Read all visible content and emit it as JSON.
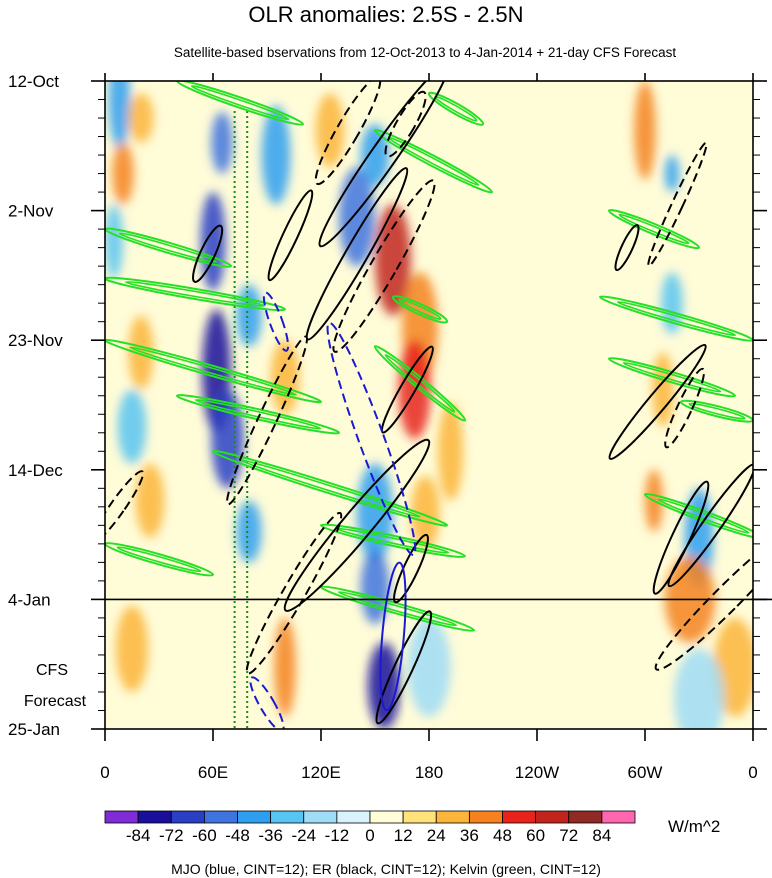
{
  "chart_data": {
    "type": "heatmap",
    "title": "OLR anomalies: 2.5S - 2.5N",
    "subtitle": "Satellite-based bservations from 12-Oct-2013 to 4-Jan-2014 + 21-day CFS Forecast",
    "x_tick_labels": [
      "0",
      "60E",
      "120E",
      "180",
      "120W",
      "60W",
      "0"
    ],
    "x_ticks_deg_east": [
      0,
      60,
      120,
      180,
      240,
      300,
      360
    ],
    "y_tick_labels": [
      "12-Oct",
      "2-Nov",
      "23-Nov",
      "14-Dec",
      "4-Jan",
      "25-Jan"
    ],
    "y_ticks_day": [
      0,
      21,
      42,
      63,
      84,
      105
    ],
    "ylim_day": [
      0,
      105
    ],
    "forecast_label": [
      "CFS",
      "Forecast"
    ],
    "forecast_start_day": 84,
    "colorbar": {
      "unit": "W/m^2",
      "levels": [
        -84,
        -72,
        -60,
        -48,
        -36,
        -24,
        -12,
        0,
        12,
        24,
        36,
        48,
        60,
        72,
        84
      ],
      "colors": [
        "#7f2bd6",
        "#1a0f9a",
        "#2a3fc4",
        "#3f74de",
        "#2e9ff0",
        "#58c4f2",
        "#9fdcf6",
        "#d8f3fb",
        "#fffcd8",
        "#ffe27a",
        "#fbb53a",
        "#f5821f",
        "#e8231c",
        "#c1241d",
        "#8f2a24",
        "#ff66b0"
      ]
    },
    "vertical_lines_deg_east": [
      72,
      79
    ],
    "footer": "MJO (blue, CINT=12); ER (black, CINT=12); Kelvin (green, CINT=12)",
    "field_blobs": [
      {
        "lon": 8,
        "day": 3,
        "rx": 6,
        "ry": 8,
        "v": -40
      },
      {
        "lon": 20,
        "day": 6,
        "rx": 7,
        "ry": 4,
        "v": 30
      },
      {
        "lon": 10,
        "day": 15,
        "rx": 6,
        "ry": 5,
        "v": 40
      },
      {
        "lon": 5,
        "day": 26,
        "rx": 5,
        "ry": 6,
        "v": -30
      },
      {
        "lon": 20,
        "day": 44,
        "rx": 7,
        "ry": 6,
        "v": 35
      },
      {
        "lon": 15,
        "day": 56,
        "rx": 8,
        "ry": 6,
        "v": -30
      },
      {
        "lon": 25,
        "day": 68,
        "rx": 8,
        "ry": 6,
        "v": 35
      },
      {
        "lon": 15,
        "day": 92,
        "rx": 9,
        "ry": 7,
        "v": 25
      },
      {
        "lon": 60,
        "day": 26,
        "rx": 7,
        "ry": 8,
        "v": -70
      },
      {
        "lon": 65,
        "day": 10,
        "rx": 6,
        "ry": 5,
        "v": -50
      },
      {
        "lon": 80,
        "day": 38,
        "rx": 7,
        "ry": 5,
        "v": -40
      },
      {
        "lon": 62,
        "day": 47,
        "rx": 8,
        "ry": 10,
        "v": -75
      },
      {
        "lon": 68,
        "day": 58,
        "rx": 9,
        "ry": 8,
        "v": -70
      },
      {
        "lon": 80,
        "day": 73,
        "rx": 7,
        "ry": 5,
        "v": -40
      },
      {
        "lon": 95,
        "day": 12,
        "rx": 8,
        "ry": 8,
        "v": -45
      },
      {
        "lon": 100,
        "day": 48,
        "rx": 8,
        "ry": 6,
        "v": 35
      },
      {
        "lon": 100,
        "day": 95,
        "rx": 6,
        "ry": 8,
        "v": 40
      },
      {
        "lon": 125,
        "day": 8,
        "rx": 8,
        "ry": 6,
        "v": 35
      },
      {
        "lon": 140,
        "day": 22,
        "rx": 10,
        "ry": 8,
        "v": -55
      },
      {
        "lon": 150,
        "day": 12,
        "rx": 8,
        "ry": 5,
        "v": -40
      },
      {
        "lon": 160,
        "day": 29,
        "rx": 10,
        "ry": 9,
        "v": 65
      },
      {
        "lon": 175,
        "day": 40,
        "rx": 10,
        "ry": 9,
        "v": 45
      },
      {
        "lon": 172,
        "day": 50,
        "rx": 9,
        "ry": 8,
        "v": 50
      },
      {
        "lon": 150,
        "day": 70,
        "rx": 10,
        "ry": 8,
        "v": -40
      },
      {
        "lon": 150,
        "day": 82,
        "rx": 8,
        "ry": 6,
        "v": -55
      },
      {
        "lon": 155,
        "day": 98,
        "rx": 9,
        "ry": 7,
        "v": -80
      },
      {
        "lon": 178,
        "day": 70,
        "rx": 8,
        "ry": 6,
        "v": 30
      },
      {
        "lon": 192,
        "day": 60,
        "rx": 7,
        "ry": 8,
        "v": 30
      },
      {
        "lon": 180,
        "day": 95,
        "rx": 12,
        "ry": 8,
        "v": -20
      },
      {
        "lon": 300,
        "day": 8,
        "rx": 6,
        "ry": 8,
        "v": 45
      },
      {
        "lon": 315,
        "day": 15,
        "rx": 4,
        "ry": 3,
        "v": -40
      },
      {
        "lon": 315,
        "day": 36,
        "rx": 6,
        "ry": 5,
        "v": -30
      },
      {
        "lon": 310,
        "day": 50,
        "rx": 6,
        "ry": 6,
        "v": 35
      },
      {
        "lon": 305,
        "day": 68,
        "rx": 5,
        "ry": 5,
        "v": 45
      },
      {
        "lon": 330,
        "day": 74,
        "rx": 8,
        "ry": 8,
        "v": -45
      },
      {
        "lon": 325,
        "day": 84,
        "rx": 14,
        "ry": 7,
        "v": 40
      },
      {
        "lon": 350,
        "day": 95,
        "rx": 12,
        "ry": 8,
        "v": 30
      },
      {
        "lon": 330,
        "day": 100,
        "rx": 14,
        "ry": 8,
        "v": -20
      }
    ],
    "mjo_contours": [
      {
        "lon": 95,
        "day": 39,
        "rx": 3.5,
        "ry": 5,
        "rot": -20,
        "dash": true
      },
      {
        "lon": 148,
        "day": 58,
        "rx": 7,
        "ry": 20,
        "rot": -20,
        "dash": true
      },
      {
        "lon": 160,
        "day": 90,
        "rx": 6,
        "ry": 12,
        "rot": 5,
        "dash": false
      },
      {
        "lon": 90,
        "day": 101,
        "rx": 4,
        "ry": 5,
        "rot": -30,
        "dash": true
      }
    ],
    "er_contours": [
      {
        "lon": 155,
        "day": 12,
        "rx": 7,
        "ry": 18,
        "rot": 35,
        "dash": false
      },
      {
        "lon": 135,
        "day": 8,
        "rx": 6,
        "ry": 10,
        "rot": 30,
        "dash": true
      },
      {
        "lon": 167,
        "day": 7,
        "rx": 5,
        "ry": 6,
        "rot": 30,
        "dash": true
      },
      {
        "lon": 140,
        "day": 28,
        "rx": 6,
        "ry": 16,
        "rot": 30,
        "dash": false
      },
      {
        "lon": 155,
        "day": 30,
        "rx": 7,
        "ry": 16,
        "rot": 30,
        "dash": true
      },
      {
        "lon": 103,
        "day": 25,
        "rx": 4,
        "ry": 8,
        "rot": 25,
        "dash": false
      },
      {
        "lon": 57,
        "day": 28,
        "rx": 4,
        "ry": 5,
        "rot": 25,
        "dash": false
      },
      {
        "lon": 168,
        "day": 50,
        "rx": 4,
        "ry": 8,
        "rot": 30,
        "dash": false
      },
      {
        "lon": 90,
        "day": 55,
        "rx": 5,
        "ry": 15,
        "rot": 25,
        "dash": true
      },
      {
        "lon": 140,
        "day": 72,
        "rx": 8,
        "ry": 18,
        "rot": 40,
        "dash": false
      },
      {
        "lon": 105,
        "day": 83,
        "rx": 6,
        "ry": 15,
        "rot": 30,
        "dash": true
      },
      {
        "lon": 170,
        "day": 79,
        "rx": 4,
        "ry": 6,
        "rot": 25,
        "dash": false
      },
      {
        "lon": 166,
        "day": 95,
        "rx": 5,
        "ry": 10,
        "rot": 25,
        "dash": false
      },
      {
        "lon": 7,
        "day": 69,
        "rx": 4,
        "ry": 7,
        "rot": 35,
        "dash": true
      },
      {
        "lon": 307,
        "day": 52,
        "rx": 5,
        "ry": 12,
        "rot": 40,
        "dash": false
      },
      {
        "lon": 322,
        "day": 53,
        "rx": 4,
        "ry": 7,
        "rot": 25,
        "dash": true
      },
      {
        "lon": 320,
        "day": 74,
        "rx": 5,
        "ry": 10,
        "rot": 25,
        "dash": false
      },
      {
        "lon": 337,
        "day": 72,
        "rx": 5,
        "ry": 12,
        "rot": 35,
        "dash": false
      },
      {
        "lon": 345,
        "day": 84,
        "rx": 7,
        "ry": 16,
        "rot": 45,
        "dash": true
      },
      {
        "lon": 318,
        "day": 20,
        "rx": 3,
        "ry": 11,
        "rot": 25,
        "dash": true
      },
      {
        "lon": 290,
        "day": 27,
        "rx": 3,
        "ry": 4,
        "rot": 25,
        "dash": false
      }
    ],
    "kelvin_bands": [
      {
        "lon1": 40,
        "day1": 0,
        "lon2": 110,
        "day2": 7
      },
      {
        "lon1": 0,
        "day1": 24,
        "lon2": 70,
        "day2": 30
      },
      {
        "lon1": 0,
        "day1": 32,
        "lon2": 100,
        "day2": 37
      },
      {
        "lon1": 0,
        "day1": 42,
        "lon2": 120,
        "day2": 52
      },
      {
        "lon1": 40,
        "day1": 51,
        "lon2": 130,
        "day2": 57
      },
      {
        "lon1": 60,
        "day1": 60,
        "lon2": 190,
        "day2": 72
      },
      {
        "lon1": 0,
        "day1": 75,
        "lon2": 60,
        "day2": 80
      },
      {
        "lon1": 120,
        "day1": 72,
        "lon2": 200,
        "day2": 77
      },
      {
        "lon1": 150,
        "day1": 8,
        "lon2": 215,
        "day2": 18
      },
      {
        "lon1": 150,
        "day1": 43,
        "lon2": 200,
        "day2": 55
      },
      {
        "lon1": 280,
        "day1": 21,
        "lon2": 330,
        "day2": 27
      },
      {
        "lon1": 275,
        "day1": 35,
        "lon2": 360,
        "day2": 42
      },
      {
        "lon1": 280,
        "day1": 45,
        "lon2": 350,
        "day2": 51
      },
      {
        "lon1": 300,
        "day1": 67,
        "lon2": 365,
        "day2": 74
      },
      {
        "lon1": 320,
        "day1": 52,
        "lon2": 360,
        "day2": 55
      },
      {
        "lon1": 120,
        "day1": 82,
        "lon2": 205,
        "day2": 89
      },
      {
        "lon1": 180,
        "day1": 2,
        "lon2": 210,
        "day2": 7
      },
      {
        "lon1": 160,
        "day1": 35,
        "lon2": 190,
        "day2": 39
      }
    ]
  }
}
